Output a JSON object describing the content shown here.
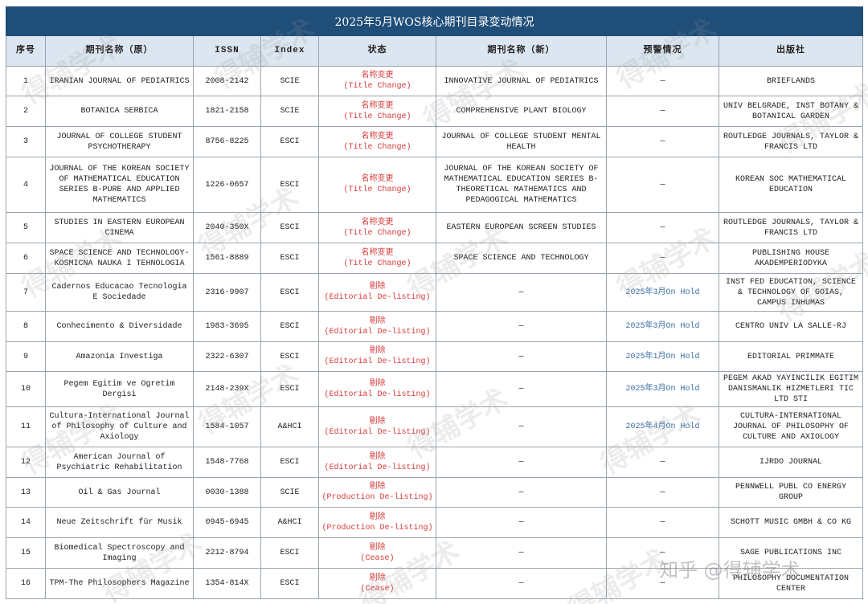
{
  "title": "2025年5月WOS核心期刊目录变动情况",
  "watermark": "得辅学术",
  "source_mark": "知乎 @得辅学术",
  "table": {
    "headers": [
      "序号",
      "期刊名称（原）",
      "ISSN",
      "Index",
      "状态",
      "期刊名称（新）",
      "预警情况",
      "出版社"
    ],
    "rows": [
      [
        "1",
        "IRANIAN JOURNAL OF PEDIATRICS",
        "2008-2142",
        "SCIE",
        {
          "label": "名称变更",
          "detail": "(Title Change)"
        },
        "INNOVATIVE JOURNAL OF PEDIATRICS",
        "—",
        "BRIEFLANDS"
      ],
      [
        "2",
        "BOTANICA SERBICA",
        "1821-2158",
        "SCIE",
        {
          "label": "名称变更",
          "detail": "(Title Change)"
        },
        "COMPREHENSIVE PLANT BIOLOGY",
        "—",
        "UNIV BELGRADE, INST BOTANY & BOTANICAL GARDEN"
      ],
      [
        "3",
        "JOURNAL OF COLLEGE STUDENT PSYCHOTHERAPY",
        "8756-8225",
        "ESCI",
        {
          "label": "名称变更",
          "detail": "(Title Change)"
        },
        "JOURNAL OF COLLEGE STUDENT MENTAL HEALTH",
        "—",
        "ROUTLEDGE JOURNALS, TAYLOR & FRANCIS LTD"
      ],
      [
        "4",
        "JOURNAL OF THE KOREAN SOCIETY OF MATHEMATICAL EDUCATION SERIES B-PURE AND APPLIED MATHEMATICS",
        "1226-0657",
        "ESCI",
        {
          "label": "名称变更",
          "detail": "(Title Change)"
        },
        "JOURNAL OF THE KOREAN SOCIETY OF MATHEMATICAL EDUCATION SERIES B-THEORETICAL MATHEMATICS AND PEDAGOGICAL MATHEMATICS",
        "—",
        "KOREAN SOC MATHEMATICAL EDUCATION"
      ],
      [
        "5",
        "STUDIES IN EASTERN EUROPEAN CINEMA",
        "2040-350X",
        "ESCI",
        {
          "label": "名称变更",
          "detail": "(Title Change)"
        },
        "EASTERN EUROPEAN SCREEN STUDIES",
        "—",
        "ROUTLEDGE JOURNALS, TAYLOR & FRANCIS LTD"
      ],
      [
        "6",
        "SPACE SCIENCE AND TECHNOLOGY-KOSMICNA NAUKA I TEHNOLOGIA",
        "1561-8889",
        "ESCI",
        {
          "label": "名称变更",
          "detail": "(Title Change)"
        },
        "SPACE SCIENCE AND TECHNOLOGY",
        "—",
        "PUBLISHING HOUSE AKADEMPERIODYKA"
      ],
      [
        "7",
        "Cadernos Educacao Tecnologia E Sociedade",
        "2316-9907",
        "ESCI",
        {
          "label": "剔除",
          "detail": "(Editorial De-listing)"
        },
        "—",
        "2025年3月On Hold",
        "INST FED EDUCATION, SCIENCE & TECHNOLOGY OF GOIAS, CAMPUS INHUMAS"
      ],
      [
        "8",
        "Conhecimento & Diversidade",
        "1983-3695",
        "ESCI",
        {
          "label": "剔除",
          "detail": "(Editorial De-listing)"
        },
        "—",
        "2025年3月On Hold",
        "CENTRO UNIV LA SALLE-RJ"
      ],
      [
        "9",
        "Amazonia Investiga",
        "2322-6307",
        "ESCI",
        {
          "label": "剔除",
          "detail": "(Editorial De-listing)"
        },
        "—",
        "2025年1月On Hold",
        "EDITORIAL PRIMMATE"
      ],
      [
        "10",
        "Pegem Egitim ve Ogretim Dergisi",
        "2148-239X",
        "ESCI",
        {
          "label": "剔除",
          "detail": "(Editorial De-listing)"
        },
        "—",
        "2025年3月On Hold",
        "PEGEM AKAD YAYINCILIK EGITIM DANISMANLIK HIZMETLERI TIC LTD STI"
      ],
      [
        "11",
        "Cultura-International Journal of Philosophy of Culture and Axiology",
        "1584-1057",
        "A&HCI",
        {
          "label": "剔除",
          "detail": "(Editorial De-listing)"
        },
        "—",
        "2025年4月On Hold",
        "CULTURA-INTERNATIONAL JOURNAL OF PHILOSOPHY OF CULTURE AND AXIOLOGY"
      ],
      [
        "12",
        "American Journal of Psychiatric Rehabilitation",
        "1548-7768",
        "ESCI",
        {
          "label": "剔除",
          "detail": "(Editorial De-listing)"
        },
        "—",
        "—",
        "IJRDO JOURNAL"
      ],
      [
        "13",
        "Oil & Gas Journal",
        "0030-1388",
        "SCIE",
        {
          "label": "剔除",
          "detail": "(Production De-listing)"
        },
        "—",
        "—",
        "PENNWELL PUBL CO ENERGY GROUP"
      ],
      [
        "14",
        "Neue Zeitschrift für Musik",
        "0945-6945",
        "A&HCI",
        {
          "label": "剔除",
          "detail": "(Production De-listing)"
        },
        "—",
        "—",
        "SCHOTT MUSIC GMBH & CO KG"
      ],
      [
        "15",
        "Biomedical Spectroscopy and Imaging",
        "2212-8794",
        "ESCI",
        {
          "label": "剔除",
          "detail": "(Cease)"
        },
        "—",
        "—",
        "SAGE PUBLICATIONS INC"
      ],
      [
        "16",
        "TPM-The Philosophers Magazine",
        "1354-814X",
        "ESCI",
        {
          "label": "剔除",
          "detail": "(Cease)"
        },
        "—",
        "—",
        "PHILOSOPHY DOCUMENTATION CENTER"
      ]
    ]
  }
}
